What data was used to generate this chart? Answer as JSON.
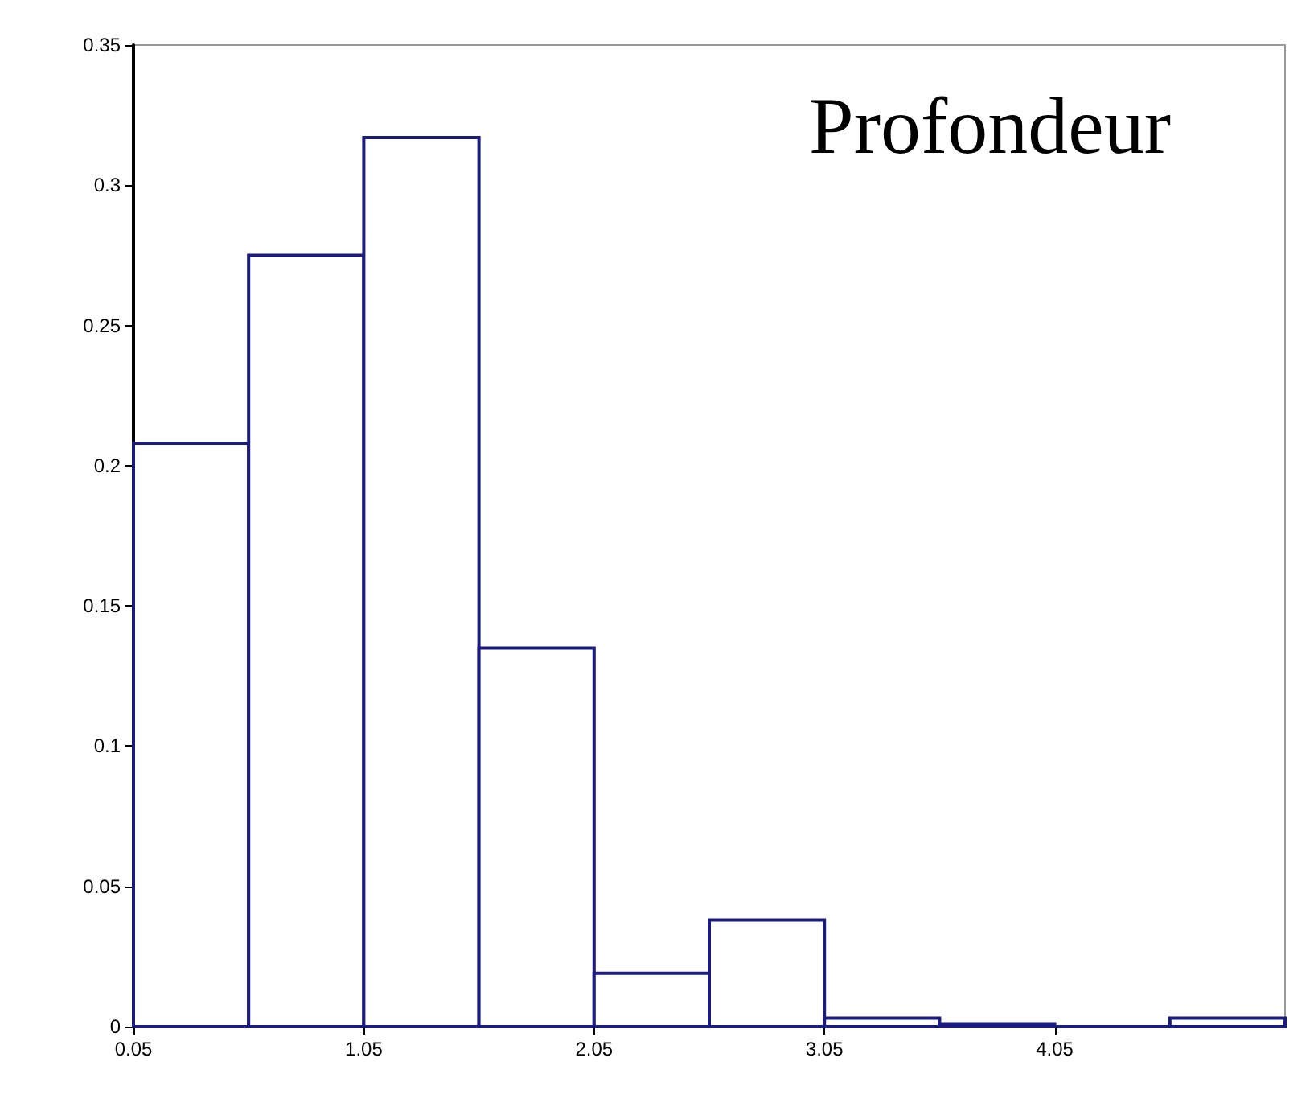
{
  "chart_data": {
    "type": "histogram",
    "title": "Profondeur",
    "bins": [
      0.05,
      0.55,
      1.05,
      1.55,
      2.05,
      2.55,
      3.05,
      3.55,
      4.05,
      4.55,
      5.05
    ],
    "values": [
      0.208,
      0.275,
      0.317,
      0.135,
      0.019,
      0.038,
      0.003,
      0.001,
      0,
      0.003
    ],
    "color": "#1c1c80",
    "xlim": [
      0.05,
      5.05
    ],
    "xticks": [
      0.05,
      1.05,
      2.05,
      3.05,
      4.05
    ],
    "ylim": [
      0,
      0.35
    ],
    "yticks": [
      0,
      0.05,
      0.1,
      0.15,
      0.2,
      0.25,
      0.3,
      0.35
    ],
    "grid": false
  }
}
